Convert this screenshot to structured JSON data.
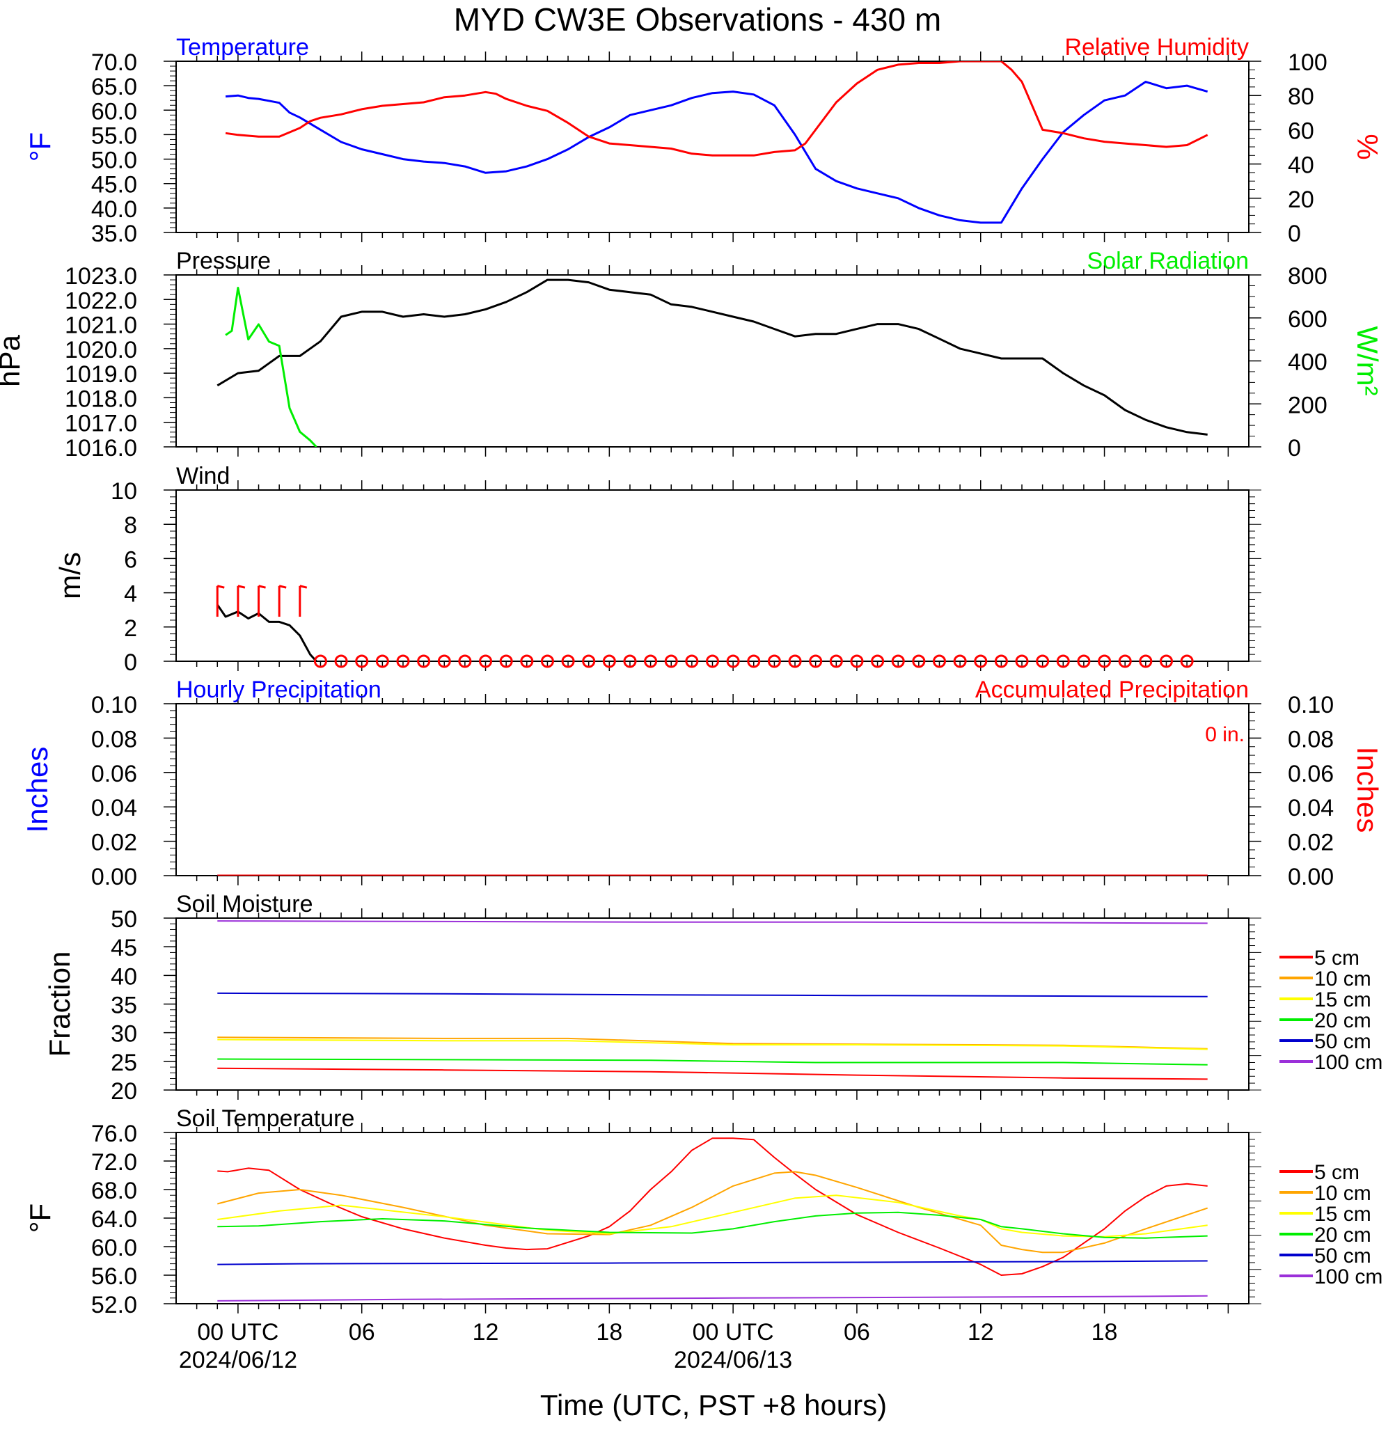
{
  "title": "MYD CW3E Observations - 430 m",
  "xlabel": "Time (UTC, PST +8 hours)",
  "x_ticks": [
    {
      "hour": 0,
      "label": "00 UTC",
      "date": "2024/06/12"
    },
    {
      "hour": 6,
      "label": "06",
      "date": ""
    },
    {
      "hour": 12,
      "label": "12",
      "date": ""
    },
    {
      "hour": 18,
      "label": "18",
      "date": ""
    },
    {
      "hour": 24,
      "label": "00 UTC",
      "date": "2024/06/13"
    },
    {
      "hour": 30,
      "label": "06",
      "date": ""
    },
    {
      "hour": 36,
      "label": "12",
      "date": ""
    },
    {
      "hour": 42,
      "label": "18",
      "date": ""
    }
  ],
  "colors": {
    "temperature": "#0000ff",
    "humidity": "#ff0000",
    "pressure": "#000000",
    "solar": "#00ee00",
    "wind": "#000000",
    "wind_barb": "#ff0000",
    "hourly_precip": "#0000ff",
    "accum_precip": "#ff0000"
  },
  "chart_data": [
    {
      "type": "line",
      "title_left": "Temperature",
      "title_right": "Relative Humidity",
      "ylabel_left": "°F",
      "ylabel_right": "%",
      "ylim_left": [
        35,
        70
      ],
      "ylim_right": [
        0,
        100
      ],
      "y_ticks_left": [
        "35.0",
        "40.0",
        "45.0",
        "50.0",
        "55.0",
        "60.0",
        "65.0",
        "70.0"
      ],
      "y_ticks_right": [
        "0",
        "20",
        "40",
        "60",
        "80",
        "100"
      ],
      "series": [
        {
          "name": "Temperature",
          "axis": "left",
          "x": [
            -0.6,
            0,
            0.5,
            1,
            2,
            2.5,
            3,
            4,
            5,
            6,
            7,
            8,
            9,
            10,
            11,
            12,
            13,
            14,
            15,
            16,
            17,
            18,
            19,
            20,
            21,
            22,
            23,
            24,
            25,
            26,
            27,
            28,
            29,
            30,
            31,
            32,
            33,
            34,
            35,
            36,
            37,
            37.5,
            38,
            39,
            40,
            41,
            42,
            43,
            44,
            45,
            46,
            47
          ],
          "y": [
            62.8,
            63,
            62.5,
            62.3,
            61.5,
            59.5,
            58.5,
            56,
            53.5,
            52,
            51,
            50,
            49.5,
            49.2,
            48.5,
            47.2,
            47.5,
            48.5,
            50,
            52,
            54.5,
            56.5,
            59,
            60,
            61,
            62.5,
            63.5,
            63.8,
            63.2,
            61,
            55,
            48,
            45.5,
            44,
            43,
            42,
            40,
            38.5,
            37.5,
            37,
            37,
            40.5,
            44,
            50,
            55.5,
            59,
            62,
            63,
            65.8,
            64.5,
            65,
            63.8
          ]
        },
        {
          "name": "Relative Humidity",
          "axis": "right",
          "x": [
            -0.6,
            0,
            1,
            2,
            3,
            3.5,
            4,
            5,
            6,
            7,
            8,
            9,
            10,
            11,
            12,
            12.5,
            13,
            14,
            15,
            16,
            17,
            18,
            19,
            20,
            21,
            22,
            23,
            24,
            25,
            26,
            27,
            27.5,
            28,
            29,
            30,
            31,
            32,
            33,
            34,
            35,
            36,
            37,
            37.5,
            38,
            39,
            40,
            41,
            42,
            43,
            44,
            45,
            46,
            47
          ],
          "y": [
            58,
            57,
            56,
            56,
            61,
            65,
            67,
            69,
            72,
            74,
            75,
            76,
            79,
            80,
            82,
            81,
            78,
            74,
            71,
            64,
            56,
            52,
            51,
            50,
            49,
            46,
            45,
            45,
            45,
            47,
            48,
            52,
            60,
            76,
            87,
            95,
            98,
            99,
            99,
            100,
            100,
            100,
            95,
            88,
            60,
            58,
            55,
            53,
            52,
            51,
            50,
            51,
            57
          ]
        }
      ]
    },
    {
      "type": "line",
      "title_left": "Pressure",
      "title_right": "Solar Radiation",
      "ylabel_left": "hPa",
      "ylabel_right": "W/m²",
      "ylim_left": [
        1016,
        1023
      ],
      "ylim_right": [
        0,
        800
      ],
      "y_ticks_left": [
        "1016.0",
        "1017.0",
        "1018.0",
        "1019.0",
        "1020.0",
        "1021.0",
        "1022.0",
        "1023.0"
      ],
      "y_ticks_right": [
        "0",
        "200",
        "400",
        "600",
        "800"
      ],
      "series": [
        {
          "name": "Pressure",
          "axis": "left",
          "x": [
            -1,
            0,
            1,
            2,
            3,
            4,
            5,
            6,
            7,
            8,
            9,
            10,
            11,
            12,
            13,
            14,
            15,
            16,
            17,
            18,
            19,
            20,
            21,
            22,
            23,
            24,
            25,
            26,
            27,
            28,
            29,
            30,
            31,
            32,
            33,
            34,
            35,
            36,
            37,
            38,
            39,
            40,
            41,
            42,
            43,
            44,
            45,
            46,
            47
          ],
          "y": [
            1018.5,
            1019,
            1019.1,
            1019.7,
            1019.7,
            1020.3,
            1021.3,
            1021.5,
            1021.5,
            1021.3,
            1021.4,
            1021.3,
            1021.4,
            1021.6,
            1021.9,
            1022.3,
            1022.8,
            1022.8,
            1022.7,
            1022.4,
            1022.3,
            1022.2,
            1021.8,
            1021.7,
            1021.5,
            1021.3,
            1021.1,
            1020.8,
            1020.5,
            1020.6,
            1020.6,
            1020.8,
            1021,
            1021,
            1020.8,
            1020.4,
            1020,
            1019.8,
            1019.6,
            1019.6,
            1019.6,
            1019,
            1018.5,
            1018.1,
            1017.5,
            1017.1,
            1016.8,
            1016.6,
            1016.5
          ]
        },
        {
          "name": "Solar Radiation",
          "axis": "right",
          "x": [
            -0.6,
            -0.3,
            0,
            0.5,
            1,
            1.5,
            2,
            2.5,
            3,
            3.5,
            3.8
          ],
          "y": [
            520,
            540,
            740,
            500,
            570,
            490,
            470,
            180,
            70,
            30,
            0
          ]
        }
      ]
    },
    {
      "type": "line",
      "title_left": "Wind",
      "ylabel_left": "m/s",
      "ylim_left": [
        0,
        10
      ],
      "y_ticks_left": [
        "0",
        "2",
        "4",
        "6",
        "8",
        "10"
      ],
      "series": [
        {
          "name": "Wind",
          "axis": "left",
          "x": [
            -1,
            -0.6,
            0,
            0.5,
            1,
            1.5,
            2,
            2.5,
            3,
            3.5,
            3.8
          ],
          "y": [
            3.3,
            2.6,
            2.9,
            2.5,
            2.8,
            2.3,
            2.3,
            2.1,
            1.5,
            0.4,
            0
          ]
        }
      ],
      "barbs_hours": [
        -1,
        0,
        1,
        2,
        3
      ],
      "calm_start": 4,
      "calm_end": 46,
      "calm_step": 1
    },
    {
      "type": "line",
      "title_left": "Hourly Precipitation",
      "title_right": "Accumulated Precipitation",
      "annotation": "0 in.",
      "ylabel_left": "Inches",
      "ylabel_right": "Inches",
      "ylim_left": [
        0,
        0.1
      ],
      "ylim_right": [
        0,
        0.1
      ],
      "y_ticks_left": [
        "0.00",
        "0.02",
        "0.04",
        "0.06",
        "0.08",
        "0.10"
      ],
      "y_ticks_right": [
        "0.00",
        "0.02",
        "0.04",
        "0.06",
        "0.08",
        "0.10"
      ],
      "series": [
        {
          "name": "Hourly Precipitation",
          "axis": "left",
          "x": [
            -1,
            47
          ],
          "y": [
            0,
            0
          ]
        },
        {
          "name": "Accumulated Precipitation",
          "axis": "right",
          "x": [
            -1,
            47
          ],
          "y": [
            0,
            0
          ]
        }
      ]
    },
    {
      "type": "line",
      "title_left": "Soil Moisture",
      "ylabel_left": "Fraction",
      "ylim_left": [
        20,
        50
      ],
      "y_ticks_left": [
        "20",
        "25",
        "30",
        "35",
        "40",
        "45",
        "50"
      ],
      "legend": "right",
      "series": [
        {
          "name": "5 cm",
          "color": "#ff0000",
          "x": [
            -1,
            10,
            20,
            30,
            40,
            47
          ],
          "y": [
            23.8,
            23.5,
            23.2,
            22.6,
            22.1,
            21.9
          ]
        },
        {
          "name": "10 cm",
          "color": "#ffa500",
          "x": [
            -1,
            10,
            16,
            24,
            30,
            40,
            47
          ],
          "y": [
            29.2,
            29,
            29,
            28.1,
            28,
            27.8,
            27.2
          ]
        },
        {
          "name": "15 cm",
          "color": "#ffff00",
          "x": [
            -1,
            10,
            16,
            24,
            30,
            40,
            47
          ],
          "y": [
            28.8,
            28.6,
            28.6,
            27.9,
            27.9,
            27.7,
            27.1
          ]
        },
        {
          "name": "20 cm",
          "color": "#00ee00",
          "x": [
            -1,
            10,
            20,
            28,
            40,
            47
          ],
          "y": [
            25.4,
            25.3,
            25.2,
            24.8,
            24.8,
            24.4
          ]
        },
        {
          "name": "50 cm",
          "color": "#0000cd",
          "x": [
            -1,
            10,
            20,
            30,
            40,
            47
          ],
          "y": [
            36.9,
            36.8,
            36.6,
            36.5,
            36.4,
            36.3
          ]
        },
        {
          "name": "100 cm",
          "color": "#9b30d9",
          "x": [
            -1,
            10,
            20,
            30,
            40,
            47
          ],
          "y": [
            49.5,
            49.4,
            49.3,
            49.3,
            49.2,
            49.1
          ]
        }
      ]
    },
    {
      "type": "line",
      "title_left": "Soil Temperature",
      "ylabel_left": "°F",
      "ylim_left": [
        52,
        76
      ],
      "y_ticks_left": [
        "52.0",
        "56.0",
        "60.0",
        "64.0",
        "68.0",
        "72.0",
        "76.0"
      ],
      "legend": "right",
      "series": [
        {
          "name": "5 cm",
          "color": "#ff0000",
          "x": [
            -1,
            -0.5,
            0.5,
            1.5,
            3,
            4.5,
            6,
            8,
            10,
            12,
            13,
            14,
            15,
            16,
            17,
            18,
            19,
            20,
            21,
            22,
            23,
            24,
            25,
            26,
            27,
            28,
            30,
            32,
            34,
            36,
            37,
            38,
            39,
            40,
            41,
            42,
            43,
            44,
            45,
            46,
            47
          ],
          "y": [
            70.6,
            70.5,
            71,
            70.7,
            68,
            66,
            64.2,
            62.5,
            61.2,
            60.2,
            59.8,
            59.6,
            59.7,
            60.6,
            61.5,
            62.8,
            65,
            68,
            70.5,
            73.5,
            75.2,
            75.2,
            75,
            72.5,
            70.2,
            68,
            64.5,
            62,
            59.8,
            57.5,
            56,
            56.2,
            57.2,
            58.5,
            60.5,
            62.5,
            65,
            67,
            68.5,
            68.8,
            68.5
          ]
        },
        {
          "name": "10 cm",
          "color": "#ffa500",
          "x": [
            -1,
            1,
            3,
            5,
            8,
            12,
            15,
            18,
            20,
            22,
            24,
            26,
            27,
            28,
            30,
            33,
            36,
            37,
            38,
            39,
            40,
            42,
            44,
            47
          ],
          "y": [
            66,
            67.5,
            68,
            67.2,
            65.5,
            63,
            61.8,
            61.7,
            63,
            65.5,
            68.5,
            70.3,
            70.5,
            70,
            68.3,
            65.5,
            63,
            60.2,
            59.6,
            59.2,
            59.2,
            60.5,
            62.5,
            65.4
          ]
        },
        {
          "name": "15 cm",
          "color": "#ffff00",
          "x": [
            -1,
            2,
            5,
            10,
            15,
            18,
            21,
            24,
            27,
            29,
            32,
            35,
            36,
            37,
            38,
            40,
            42,
            44,
            47
          ],
          "y": [
            63.8,
            65,
            65.8,
            64.2,
            62.3,
            61.8,
            62.8,
            64.8,
            66.8,
            67.2,
            66.2,
            64.3,
            63.8,
            62.5,
            62,
            61.5,
            61.4,
            61.8,
            63
          ]
        },
        {
          "name": "20 cm",
          "color": "#00ee00",
          "x": [
            -1,
            1,
            4,
            7,
            10,
            14,
            18,
            22,
            24,
            26,
            28,
            30,
            32,
            34,
            36,
            37,
            38,
            40,
            42,
            44,
            47
          ],
          "y": [
            62.8,
            62.9,
            63.5,
            63.9,
            63.6,
            62.6,
            62,
            61.9,
            62.5,
            63.5,
            64.3,
            64.7,
            64.8,
            64.4,
            63.8,
            62.8,
            62.5,
            61.8,
            61.3,
            61.2,
            61.5
          ]
        },
        {
          "name": "50 cm",
          "color": "#0000cd",
          "x": [
            -1,
            3,
            18,
            40,
            47
          ],
          "y": [
            57.5,
            57.6,
            57.7,
            57.9,
            58
          ]
        },
        {
          "name": "100 cm",
          "color": "#9b30d9",
          "x": [
            -1,
            8,
            24,
            42,
            47
          ],
          "y": [
            52.4,
            52.6,
            52.8,
            53.0,
            53.1
          ]
        }
      ]
    }
  ]
}
